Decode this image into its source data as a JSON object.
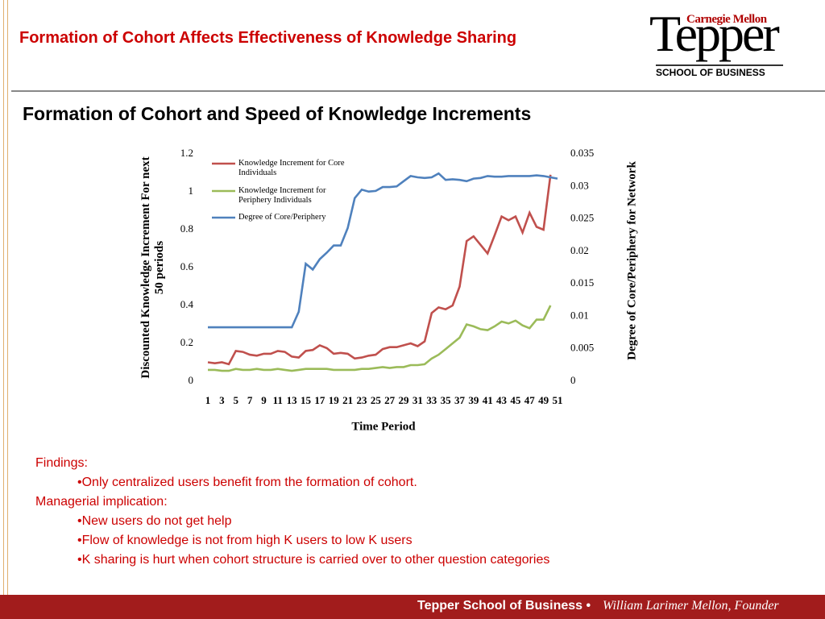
{
  "header": {
    "title": "Formation of Cohort Affects Effectiveness of Knowledge Sharing",
    "logo": {
      "top": "Carnegie Mellon",
      "main": "Tepper",
      "sub": "SCHOOL OF BUSINESS"
    }
  },
  "subtitle": "Formation of Cohort and Speed of Knowledge Increments",
  "chart_data": {
    "type": "line",
    "ylabel": "Discounted Knowledge Increment For next 50 periods",
    "y2label": "Degree of Core/Periphery for Network",
    "xlabel": "Time Period",
    "categories": [
      1,
      null,
      3,
      null,
      5,
      null,
      7,
      null,
      9,
      null,
      11,
      null,
      13,
      null,
      15,
      null,
      17,
      null,
      19,
      null,
      21,
      null,
      23,
      null,
      25,
      null,
      27,
      null,
      29,
      null,
      31,
      null,
      33,
      null,
      35,
      null,
      37,
      null,
      39,
      null,
      41,
      null,
      43,
      null,
      45,
      null,
      47,
      null,
      49,
      null,
      51
    ],
    "series": [
      {
        "name": "Knowledge Increment for Core Individuals",
        "color": "#c0504d",
        "values": [
          0.1,
          0.095,
          0.1,
          0.09,
          0.16,
          0.155,
          0.14,
          0.135,
          0.145,
          0.145,
          0.16,
          0.155,
          0.13,
          0.125,
          0.16,
          0.165,
          0.19,
          0.175,
          0.145,
          0.15,
          0.145,
          0.12,
          0.125,
          0.135,
          0.14,
          0.17,
          0.18,
          0.18,
          0.19,
          0.2,
          0.185,
          0.21,
          0.36,
          0.39,
          0.38,
          0.4,
          0.5,
          0.74,
          0.765,
          0.72,
          0.675,
          0.77,
          0.87,
          0.85,
          0.87,
          0.785,
          0.89,
          0.815,
          0.8,
          1.09,
          null
        ]
      },
      {
        "name": "Knowledge Increment for Periphery Individuals",
        "color": "#9bbb59",
        "values": [
          0.06,
          0.06,
          0.055,
          0.055,
          0.065,
          0.06,
          0.06,
          0.065,
          0.06,
          0.06,
          0.065,
          0.06,
          0.055,
          0.06,
          0.065,
          0.065,
          0.065,
          0.065,
          0.06,
          0.06,
          0.06,
          0.06,
          0.065,
          0.065,
          0.07,
          0.075,
          0.07,
          0.075,
          0.075,
          0.085,
          0.085,
          0.09,
          0.12,
          0.14,
          0.17,
          0.2,
          0.23,
          0.3,
          0.29,
          0.275,
          0.27,
          0.29,
          0.315,
          0.305,
          0.32,
          0.295,
          0.28,
          0.325,
          0.325,
          0.4,
          null
        ]
      },
      {
        "name": "Degree of Core/Periphery",
        "color": "#4f81bd",
        "axis": "y2",
        "values": [
          0.0083,
          0.0083,
          0.0083,
          0.0083,
          0.0083,
          0.0083,
          0.0083,
          0.0083,
          0.0083,
          0.0083,
          0.0083,
          0.0083,
          0.0083,
          0.0107,
          0.0181,
          0.0172,
          0.0188,
          0.0198,
          0.0209,
          0.0209,
          0.0236,
          0.0282,
          0.0295,
          0.0292,
          0.0293,
          0.0299,
          0.0299,
          0.03,
          0.0308,
          0.0316,
          0.0314,
          0.0313,
          0.0314,
          0.032,
          0.031,
          0.0311,
          0.031,
          0.0308,
          0.0312,
          0.0313,
          0.0316,
          0.0315,
          0.0315,
          0.0316,
          0.0316,
          0.0316,
          0.0316,
          0.0317,
          0.0316,
          0.0314,
          0.0312
        ]
      }
    ],
    "ylim": [
      0,
      1.2
    ],
    "yticks": [
      0,
      0.2,
      0.4,
      0.6,
      0.8,
      1,
      1.2
    ],
    "y2lim": [
      0,
      0.035
    ],
    "y2ticks": [
      0,
      0.005,
      0.01,
      0.015,
      0.02,
      0.025,
      0.03,
      0.035
    ],
    "legend": "upper left"
  },
  "findings": [
    {
      "heading": "Findings:",
      "items": [
        "•Only centralized users benefit from the formation of cohort."
      ]
    },
    {
      "heading": "Managerial implication:",
      "items": [
        "•New users do not get help",
        "•Flow of knowledge is not from high K users to low K users",
        "•K sharing is hurt when cohort structure is carried over to other question categories"
      ]
    }
  ],
  "footer": {
    "school": "Tepper School of Business •",
    "founder": "William Larimer Mellon, Founder"
  }
}
